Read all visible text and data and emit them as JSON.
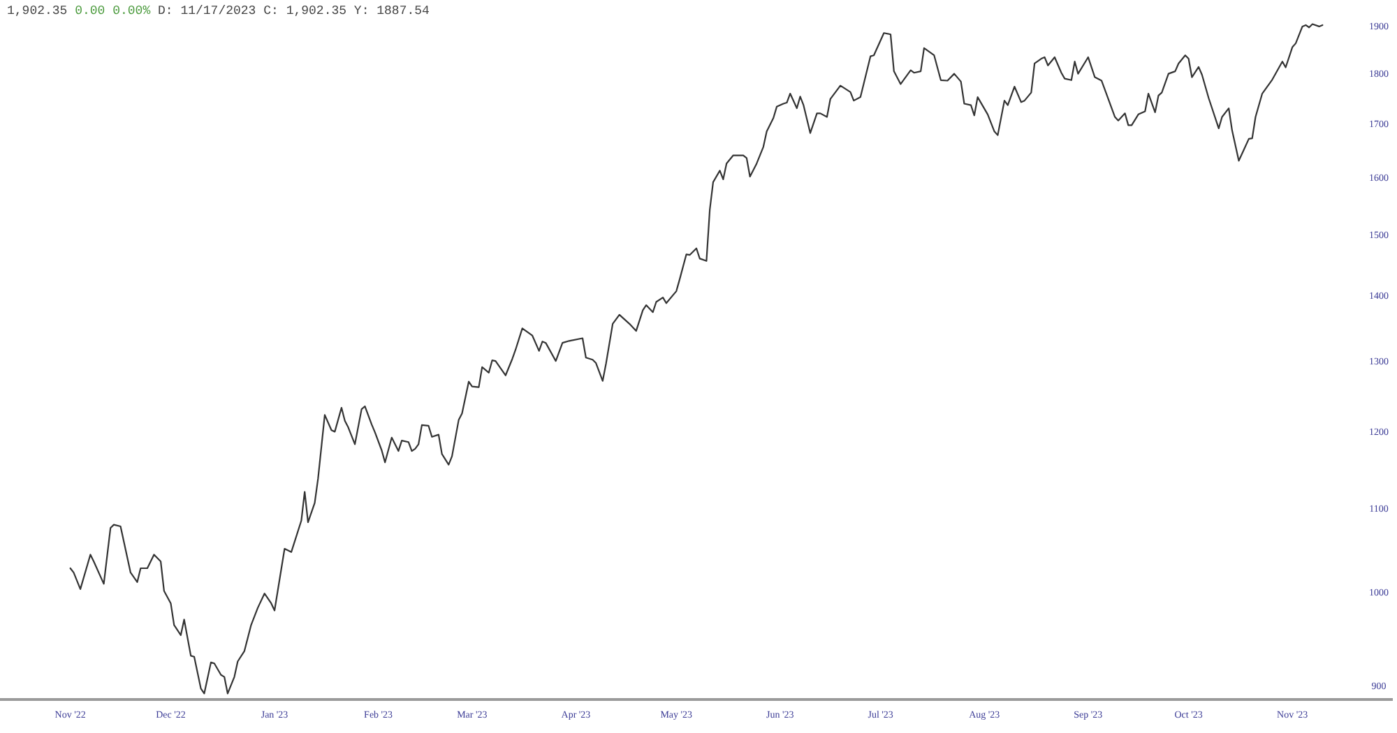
{
  "chart_data": {
    "type": "line",
    "title": "1,902.35",
    "subtitle": "0.00 0.00%",
    "annotations": [
      "D: 11/17/2023 C: 1,902.35 Y: 1887.54"
    ],
    "color": "#333333",
    "log": "y",
    "x": [
      "2022-11-01",
      "2022-11-02",
      "2022-11-04",
      "2022-11-07",
      "2022-11-08",
      "2022-11-11",
      "2022-11-13",
      "2022-11-14",
      "2022-11-16",
      "2022-11-19",
      "2022-11-21",
      "2022-11-22",
      "2022-11-24",
      "2022-11-26",
      "2022-11-28",
      "2022-11-29",
      "2022-12-01",
      "2022-12-02",
      "2022-12-04",
      "2022-12-05",
      "2022-12-07",
      "2022-12-08",
      "2022-12-10",
      "2022-12-11",
      "2022-12-13",
      "2022-12-14",
      "2022-12-16",
      "2022-12-17",
      "2022-12-18",
      "2022-12-20",
      "2022-12-21",
      "2022-12-23",
      "2022-12-25",
      "2022-12-27",
      "2022-12-29",
      "2022-12-31",
      "2023-01-01",
      "2023-01-04",
      "2023-01-06",
      "2023-01-09",
      "2023-01-10",
      "2023-01-11",
      "2023-01-13",
      "2023-01-14",
      "2023-01-16",
      "2023-01-18",
      "2023-01-19",
      "2023-01-21",
      "2023-01-22",
      "2023-01-23",
      "2023-01-25",
      "2023-01-27",
      "2023-01-28",
      "2023-01-30",
      "2023-01-31",
      "2023-02-02",
      "2023-02-03",
      "2023-02-05",
      "2023-02-07",
      "2023-02-08",
      "2023-02-10",
      "2023-02-11",
      "2023-02-12",
      "2023-02-13",
      "2023-02-14",
      "2023-02-16",
      "2023-02-17",
      "2023-02-19",
      "2023-02-20",
      "2023-02-22",
      "2023-02-23",
      "2023-02-25",
      "2023-02-26",
      "2023-02-28",
      "2023-03-01",
      "2023-03-03",
      "2023-03-04",
      "2023-03-06",
      "2023-03-07",
      "2023-03-08",
      "2023-03-11",
      "2023-03-13",
      "2023-03-14",
      "2023-03-16",
      "2023-03-19",
      "2023-03-21",
      "2023-03-22",
      "2023-03-23",
      "2023-03-26",
      "2023-03-28",
      "2023-03-30",
      "2023-04-03",
      "2023-04-04",
      "2023-04-06",
      "2023-04-07",
      "2023-04-09",
      "2023-04-10",
      "2023-04-12",
      "2023-04-14",
      "2023-04-17",
      "2023-04-19",
      "2023-04-21",
      "2023-04-22",
      "2023-04-24",
      "2023-04-25",
      "2023-04-27",
      "2023-04-28",
      "2023-05-01",
      "2023-05-02",
      "2023-05-04",
      "2023-05-05",
      "2023-05-07",
      "2023-05-08",
      "2023-05-10",
      "2023-05-11",
      "2023-05-12",
      "2023-05-14",
      "2023-05-15",
      "2023-05-16",
      "2023-05-18",
      "2023-05-21",
      "2023-05-22",
      "2023-05-23",
      "2023-05-25",
      "2023-05-27",
      "2023-05-28",
      "2023-05-30",
      "2023-05-31",
      "2023-06-02",
      "2023-06-03",
      "2023-06-04",
      "2023-06-06",
      "2023-06-07",
      "2023-06-08",
      "2023-06-10",
      "2023-06-12",
      "2023-06-13",
      "2023-06-15",
      "2023-06-16",
      "2023-06-19",
      "2023-06-22",
      "2023-06-23",
      "2023-06-25",
      "2023-06-28",
      "2023-06-29",
      "2023-07-02",
      "2023-07-04",
      "2023-07-05",
      "2023-07-07",
      "2023-07-10",
      "2023-07-11",
      "2023-07-13",
      "2023-07-14",
      "2023-07-17",
      "2023-07-19",
      "2023-07-21",
      "2023-07-23",
      "2023-07-25",
      "2023-07-26",
      "2023-07-28",
      "2023-07-29",
      "2023-07-30",
      "2023-08-02",
      "2023-08-04",
      "2023-08-05",
      "2023-08-07",
      "2023-08-08",
      "2023-08-10",
      "2023-08-12",
      "2023-08-13",
      "2023-08-15",
      "2023-08-16",
      "2023-08-18",
      "2023-08-19",
      "2023-08-20",
      "2023-08-22",
      "2023-08-24",
      "2023-08-25",
      "2023-08-27",
      "2023-08-28",
      "2023-08-29",
      "2023-09-01",
      "2023-09-03",
      "2023-09-05",
      "2023-09-09",
      "2023-09-10",
      "2023-09-12",
      "2023-09-13",
      "2023-09-14",
      "2023-09-16",
      "2023-09-18",
      "2023-09-19",
      "2023-09-21",
      "2023-09-22",
      "2023-09-23",
      "2023-09-25",
      "2023-09-27",
      "2023-09-28",
      "2023-09-30",
      "2023-10-01",
      "2023-10-02",
      "2023-10-04",
      "2023-10-05",
      "2023-10-07",
      "2023-10-10",
      "2023-10-11",
      "2023-10-13",
      "2023-10-14",
      "2023-10-16",
      "2023-10-19",
      "2023-10-20",
      "2023-10-21",
      "2023-10-23",
      "2023-10-26",
      "2023-10-29",
      "2023-10-30",
      "2023-11-01",
      "2023-11-02",
      "2023-11-04",
      "2023-11-05",
      "2023-11-06",
      "2023-11-07",
      "2023-11-09",
      "2023-11-10"
    ],
    "values": [
      1028,
      1023,
      1004,
      1044,
      1036,
      1010,
      1076,
      1080,
      1078,
      1023,
      1012,
      1028,
      1028,
      1044,
      1036,
      1002,
      988,
      964,
      953,
      970,
      931,
      930,
      897,
      892,
      924,
      923,
      911,
      909,
      892,
      909,
      925,
      936,
      964,
      983,
      999,
      988,
      980,
      1051,
      1047,
      1085,
      1121,
      1083,
      1107,
      1138,
      1223,
      1202,
      1200,
      1233,
      1215,
      1206,
      1183,
      1231,
      1235,
      1210,
      1199,
      1175,
      1159,
      1192,
      1174,
      1188,
      1186,
      1174,
      1177,
      1183,
      1209,
      1208,
      1193,
      1196,
      1170,
      1156,
      1167,
      1216,
      1225,
      1270,
      1263,
      1262,
      1291,
      1283,
      1301,
      1300,
      1279,
      1303,
      1317,
      1349,
      1338,
      1315,
      1329,
      1327,
      1300,
      1327,
      1330,
      1334,
      1305,
      1302,
      1297,
      1271,
      1296,
      1356,
      1370,
      1356,
      1345,
      1377,
      1385,
      1374,
      1390,
      1397,
      1388,
      1407,
      1426,
      1467,
      1466,
      1477,
      1460,
      1456,
      1543,
      1592,
      1613,
      1597,
      1626,
      1641,
      1641,
      1636,
      1602,
      1626,
      1657,
      1686,
      1712,
      1734,
      1740,
      1742,
      1760,
      1731,
      1754,
      1737,
      1683,
      1721,
      1721,
      1714,
      1749,
      1776,
      1763,
      1746,
      1753,
      1836,
      1838,
      1885,
      1882,
      1805,
      1779,
      1807,
      1802,
      1805,
      1853,
      1838,
      1787,
      1786,
      1800,
      1784,
      1740,
      1737,
      1717,
      1753,
      1719,
      1686,
      1679,
      1746,
      1737,
      1774,
      1743,
      1746,
      1762,
      1821,
      1831,
      1834,
      1817,
      1834,
      1802,
      1790,
      1787,
      1825,
      1800,
      1834,
      1793,
      1786,
      1714,
      1707,
      1721,
      1698,
      1698,
      1719,
      1725,
      1760,
      1723,
      1756,
      1762,
      1800,
      1805,
      1821,
      1838,
      1831,
      1793,
      1814,
      1798,
      1751,
      1692,
      1714,
      1731,
      1688,
      1631,
      1672,
      1673,
      1714,
      1760,
      1788,
      1825,
      1813,
      1855,
      1863,
      1899,
      1902,
      1897,
      1904,
      1899,
      1902
    ],
    "xlim": [
      "2022-10-11",
      "2023-12-01"
    ],
    "xticks": [
      {
        "value": "2022-11-01",
        "label": "Nov '22"
      },
      {
        "value": "2022-12-01",
        "label": "Dec '22"
      },
      {
        "value": "2023-01-01",
        "label": "Jan '23"
      },
      {
        "value": "2023-02-01",
        "label": "Feb '23"
      },
      {
        "value": "2023-03-01",
        "label": "Mar '23"
      },
      {
        "value": "2023-04-01",
        "label": "Apr '23"
      },
      {
        "value": "2023-05-01",
        "label": "May '23"
      },
      {
        "value": "2023-06-01",
        "label": "Jun '23"
      },
      {
        "value": "2023-07-01",
        "label": "Jul '23"
      },
      {
        "value": "2023-08-01",
        "label": "Aug '23"
      },
      {
        "value": "2023-09-01",
        "label": "Sep '23"
      },
      {
        "value": "2023-10-01",
        "label": "Oct '23"
      },
      {
        "value": "2023-11-01",
        "label": "Nov '23"
      }
    ],
    "ylim": [
      886,
      1920
    ],
    "yticks": [
      900,
      1000,
      1100,
      1200,
      1300,
      1400,
      1500,
      1600,
      1700,
      1800,
      1900
    ]
  }
}
